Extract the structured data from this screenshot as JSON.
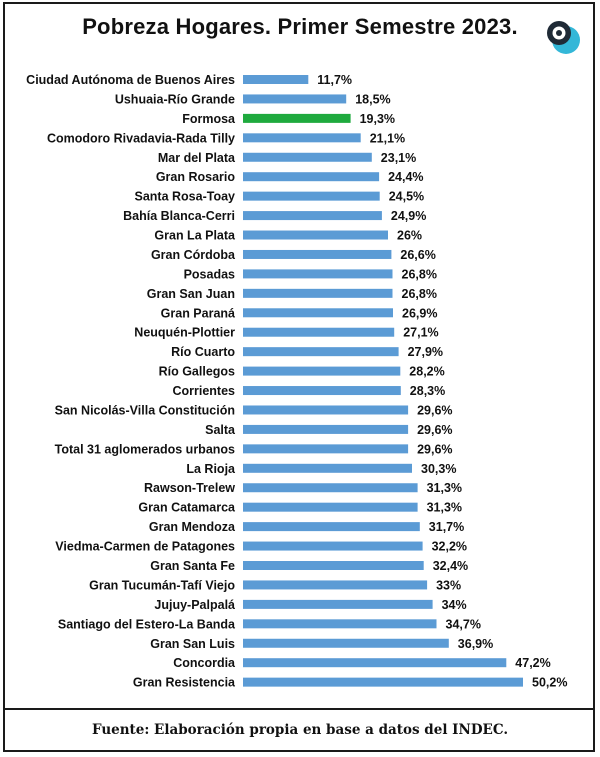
{
  "chart_data": {
    "type": "bar",
    "orientation": "horizontal",
    "title": "Pobreza Hogares. Primer Semestre 2023.",
    "source": "Fuente: Elaboración propia en base a datos del INDEC.",
    "bar_color": "#5b9bd5",
    "highlight_color": "#1faa3e",
    "highlight_category": "Formosa",
    "xlim": [
      0,
      50.2
    ],
    "grid": false,
    "categories": [
      "Ciudad Autónoma de Buenos Aires",
      "Ushuaia-Río Grande",
      "Formosa",
      "Comodoro Rivadavia-Rada Tilly",
      "Mar del Plata",
      "Gran Rosario",
      "Santa Rosa-Toay",
      "Bahía Blanca-Cerri",
      "Gran La Plata",
      "Gran Córdoba",
      "Posadas",
      "Gran San Juan",
      "Gran Paraná",
      "Neuquén-Plottier",
      "Río Cuarto",
      "Río Gallegos",
      "Corrientes",
      "San Nicolás-Villa Constitución",
      "Salta",
      "Total 31 aglomerados urbanos",
      "La Rioja",
      "Rawson-Trelew",
      "Gran Catamarca",
      "Gran Mendoza",
      "Viedma-Carmen de Patagones",
      "Gran Santa Fe",
      "Gran Tucumán-Tafí Viejo",
      "Jujuy-Palpalá",
      "Santiago del Estero-La Banda",
      "Gran San Luis",
      "Concordia",
      "Gran Resistencia"
    ],
    "values": [
      11.7,
      18.5,
      19.3,
      21.1,
      23.1,
      24.4,
      24.5,
      24.9,
      26,
      26.6,
      26.8,
      26.8,
      26.9,
      27.1,
      27.9,
      28.2,
      28.3,
      29.6,
      29.6,
      29.6,
      30.3,
      31.3,
      31.3,
      31.7,
      32.2,
      32.4,
      33,
      34,
      34.7,
      36.9,
      47.2,
      50.2
    ],
    "value_labels": [
      "11,7%",
      "18,5%",
      "19,3%",
      "21,1%",
      "23,1%",
      "24,4%",
      "24,5%",
      "24,9%",
      "26%",
      "26,6%",
      "26,8%",
      "26,8%",
      "26,9%",
      "27,1%",
      "27,9%",
      "28,2%",
      "28,3%",
      "29,6%",
      "29,6%",
      "29,6%",
      "30,3%",
      "31,3%",
      "31,3%",
      "31,7%",
      "32,2%",
      "32,4%",
      "33%",
      "34%",
      "34,7%",
      "36,9%",
      "47,2%",
      "50,2%"
    ]
  },
  "logo": {
    "icon": "circle-q-logo-icon",
    "dark_color": "#1f2a36",
    "accent_color": "#33b7d8"
  }
}
